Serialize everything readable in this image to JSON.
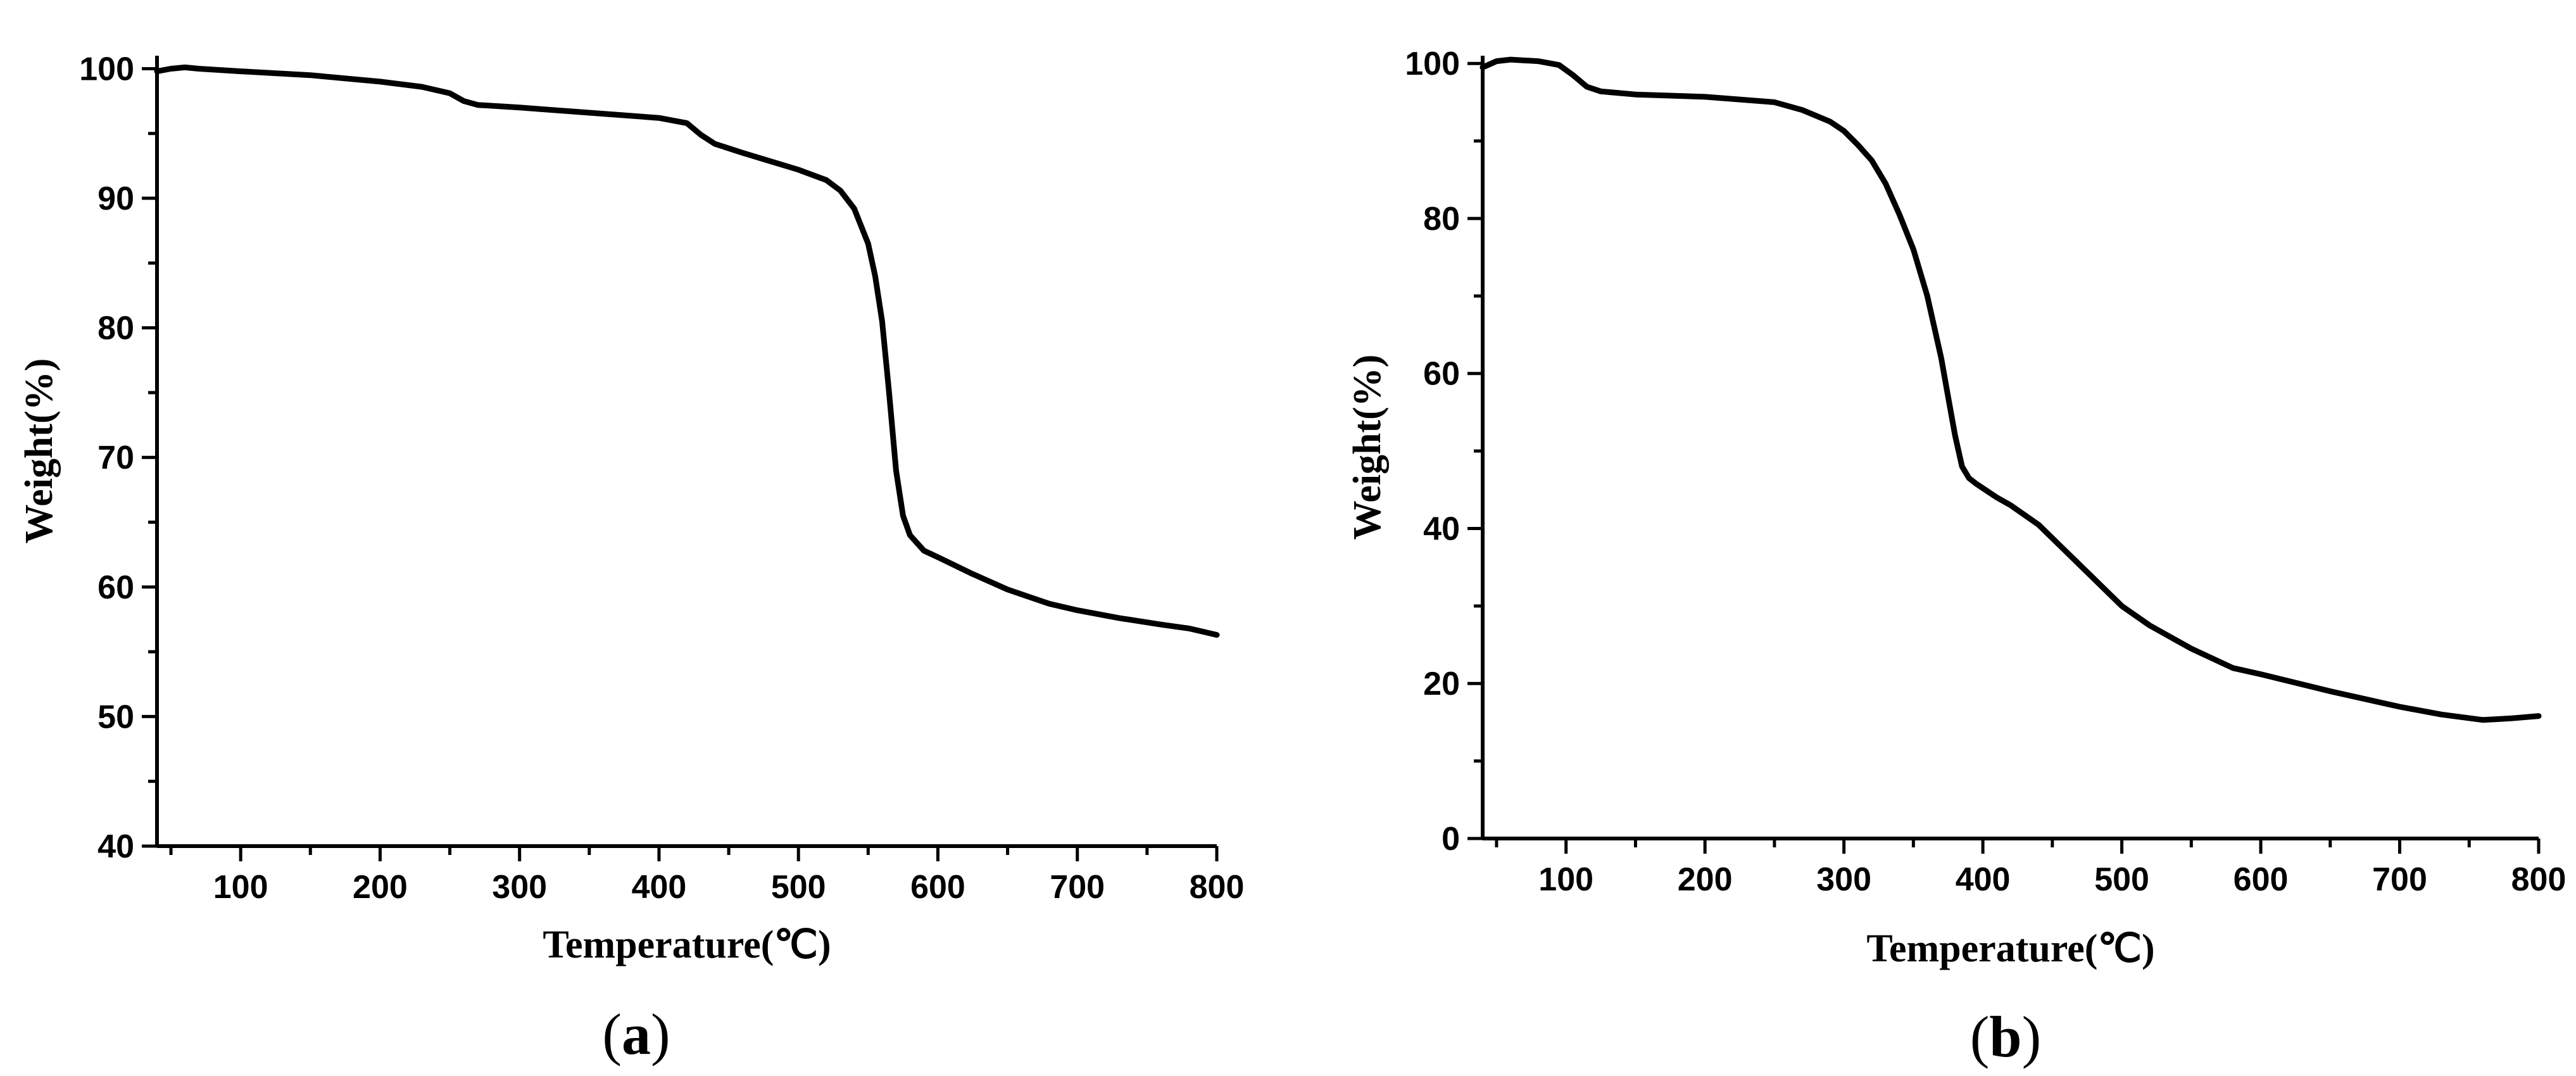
{
  "chart_data": [
    {
      "type": "line",
      "panel_label": "a",
      "xlabel": "Temperature(℃)",
      "ylabel": "Weight(%)",
      "xlim": [
        40,
        800
      ],
      "ylim": [
        40,
        101
      ],
      "xticks": [
        100,
        200,
        300,
        400,
        500,
        600,
        700,
        800
      ],
      "yticks": [
        40,
        50,
        60,
        70,
        80,
        90,
        100
      ],
      "series": [
        {
          "x": [
            40,
            50,
            60,
            70,
            100,
            150,
            200,
            230,
            250,
            260,
            270,
            300,
            350,
            400,
            420,
            430,
            440,
            460,
            500,
            520,
            530,
            540,
            550,
            555,
            560,
            565,
            570,
            575,
            580,
            590,
            600,
            625,
            650,
            680,
            700,
            730,
            760,
            780,
            800
          ],
          "y": [
            99.8,
            100.0,
            100.1,
            100.0,
            99.8,
            99.5,
            99.0,
            98.6,
            98.1,
            97.5,
            97.2,
            97.0,
            96.6,
            96.2,
            95.8,
            94.9,
            94.2,
            93.5,
            92.2,
            91.4,
            90.6,
            89.2,
            86.5,
            84.0,
            80.5,
            75.0,
            69.0,
            65.5,
            64.0,
            62.8,
            62.3,
            61.0,
            59.8,
            58.7,
            58.2,
            57.6,
            57.1,
            56.8,
            56.3
          ]
        }
      ]
    },
    {
      "type": "line",
      "panel_label": "b",
      "xlabel": "Temperature(℃)",
      "ylabel": "Weight(%)",
      "xlim": [
        40,
        800
      ],
      "ylim": [
        0,
        101
      ],
      "xticks": [
        100,
        200,
        300,
        400,
        500,
        600,
        700,
        800
      ],
      "yticks": [
        0,
        20,
        40,
        60,
        80,
        100
      ],
      "series": [
        {
          "x": [
            40,
            50,
            60,
            80,
            95,
            105,
            115,
            125,
            150,
            200,
            250,
            270,
            290,
            300,
            310,
            320,
            330,
            340,
            350,
            360,
            370,
            375,
            380,
            385,
            390,
            395,
            400,
            410,
            420,
            440,
            460,
            480,
            500,
            520,
            550,
            580,
            600,
            650,
            700,
            730,
            760,
            780,
            800
          ],
          "y": [
            99.5,
            100.3,
            100.5,
            100.3,
            99.8,
            98.5,
            97.0,
            96.4,
            96.0,
            95.7,
            95.0,
            94.0,
            92.5,
            91.3,
            89.5,
            87.5,
            84.5,
            80.5,
            76.0,
            70.0,
            62.0,
            57.0,
            52.0,
            48.0,
            46.5,
            45.8,
            45.2,
            44.0,
            43.0,
            40.5,
            37.0,
            33.5,
            30.0,
            27.5,
            24.5,
            22.0,
            21.2,
            19.0,
            17.0,
            16.0,
            15.3,
            15.5,
            15.8
          ]
        }
      ]
    }
  ]
}
